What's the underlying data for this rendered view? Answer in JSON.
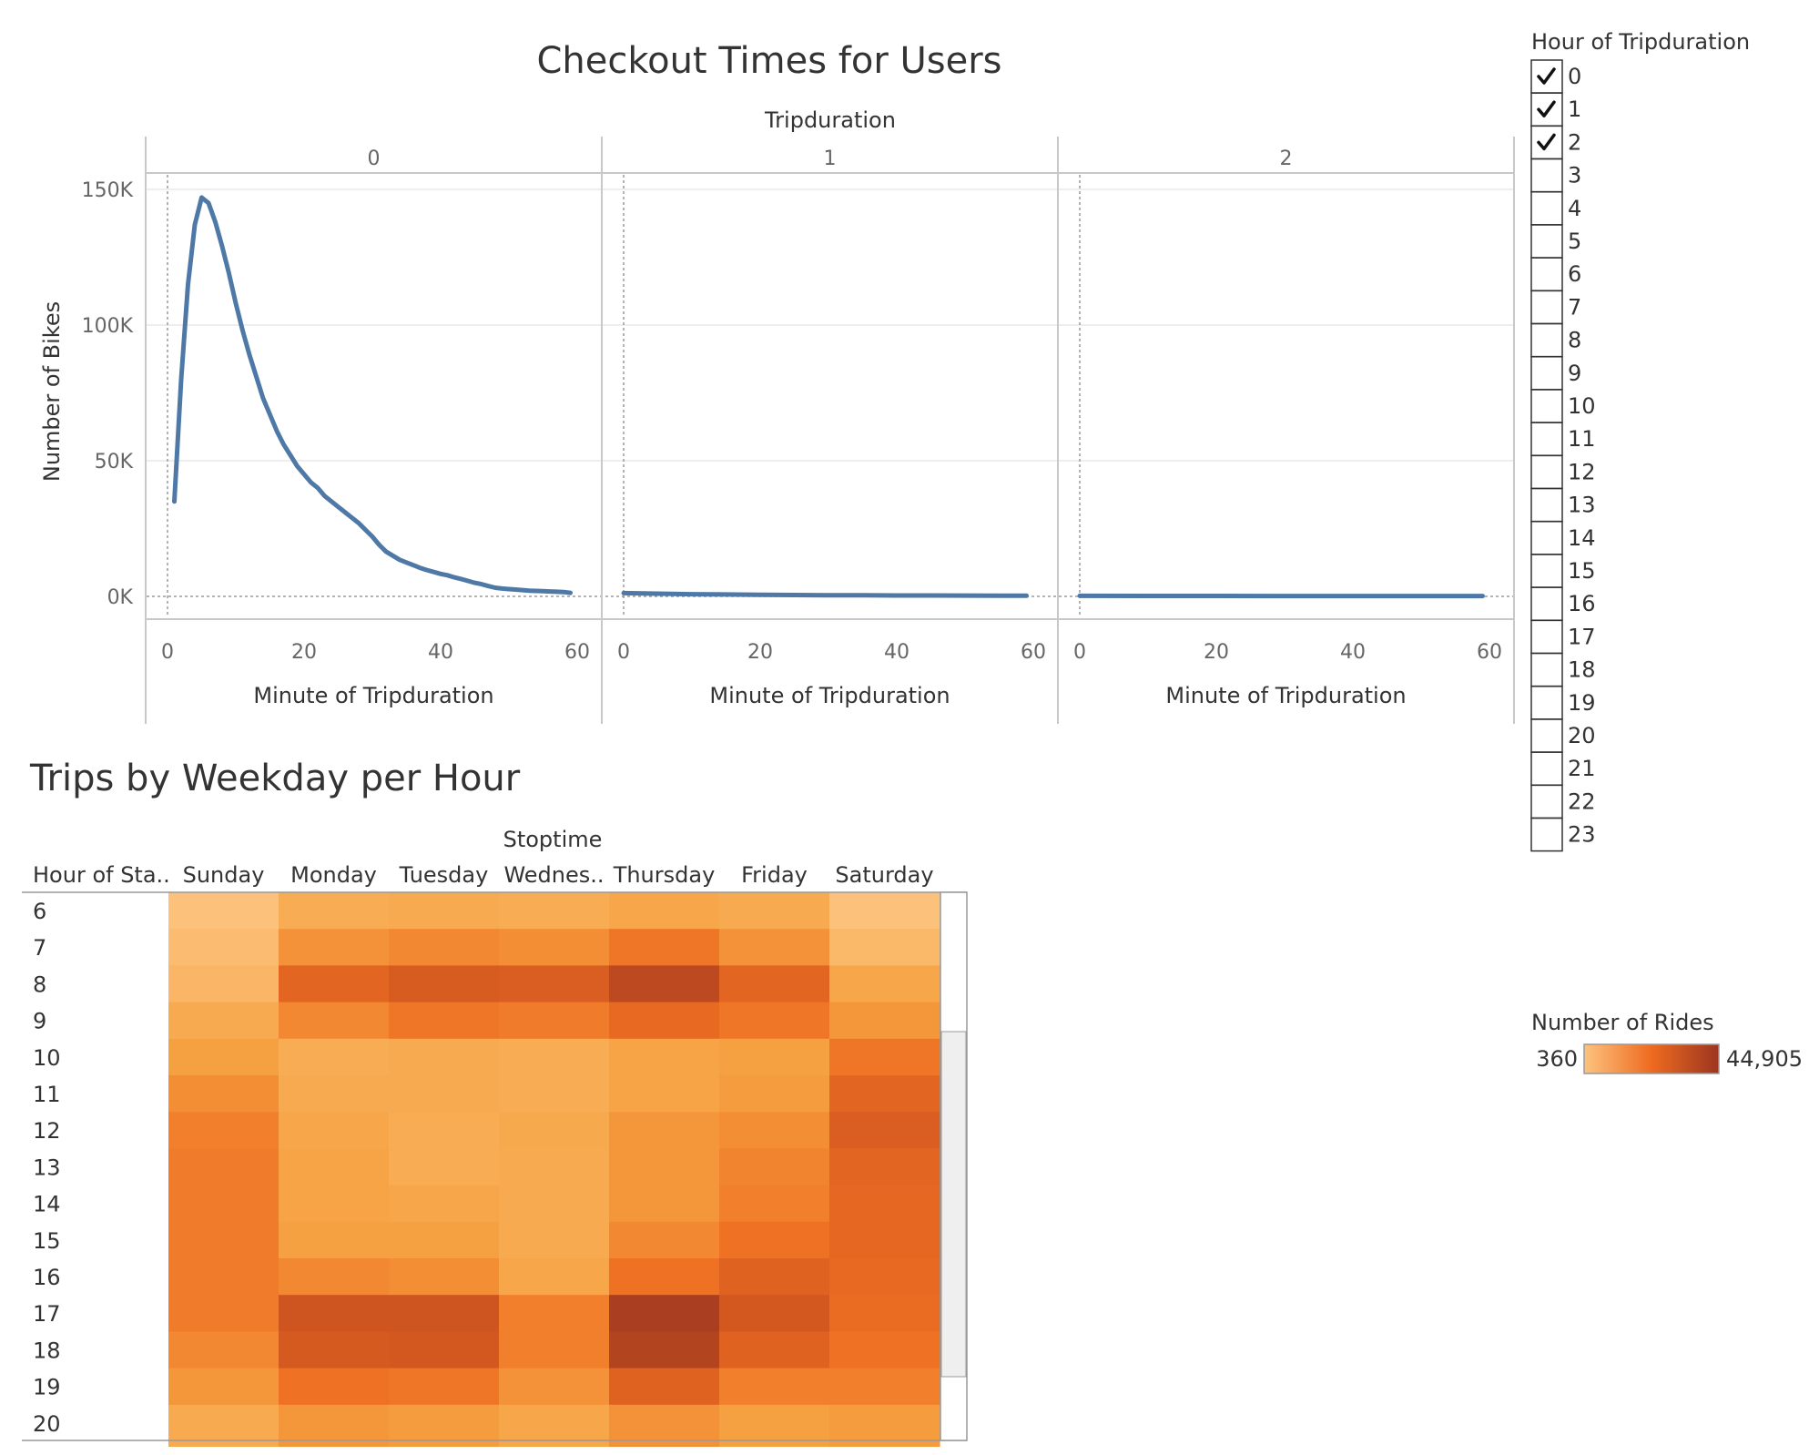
{
  "colors": {
    "line": "#4e79a7",
    "heat_low": "#fdc37f",
    "heat_mid": "#ee6b20",
    "heat_high": "#9c3520"
  },
  "line_chart_panel": {
    "title": "Checkout Times for Users",
    "column_header": "Tripduration",
    "ylabel": "Number of Bikes",
    "xlabel": "Minute of Tripduration"
  },
  "heatmap_panel": {
    "title": "Trips by Weekday per Hour",
    "column_header": "Stoptime",
    "row_header": "Hour of Sta..",
    "column_labels": [
      "Sunday",
      "Monday",
      "Tuesday",
      "Wednes..",
      "Thursday",
      "Friday",
      "Saturday"
    ]
  },
  "filter": {
    "title": "Hour of Tripduration",
    "items": [
      {
        "label": "0",
        "checked": true
      },
      {
        "label": "1",
        "checked": true
      },
      {
        "label": "2",
        "checked": true
      },
      {
        "label": "3",
        "checked": false
      },
      {
        "label": "4",
        "checked": false
      },
      {
        "label": "5",
        "checked": false
      },
      {
        "label": "6",
        "checked": false
      },
      {
        "label": "7",
        "checked": false
      },
      {
        "label": "8",
        "checked": false
      },
      {
        "label": "9",
        "checked": false
      },
      {
        "label": "10",
        "checked": false
      },
      {
        "label": "11",
        "checked": false
      },
      {
        "label": "12",
        "checked": false
      },
      {
        "label": "13",
        "checked": false
      },
      {
        "label": "14",
        "checked": false
      },
      {
        "label": "15",
        "checked": false
      },
      {
        "label": "16",
        "checked": false
      },
      {
        "label": "17",
        "checked": false
      },
      {
        "label": "18",
        "checked": false
      },
      {
        "label": "19",
        "checked": false
      },
      {
        "label": "20",
        "checked": false
      },
      {
        "label": "21",
        "checked": false
      },
      {
        "label": "22",
        "checked": false
      },
      {
        "label": "23",
        "checked": false
      }
    ]
  },
  "color_legend": {
    "title": "Number of Rides",
    "min_label": "360",
    "max_label": "44,905"
  },
  "chart_data": [
    {
      "type": "line",
      "title": "Checkout Times for Users",
      "facet_label": "Tripduration",
      "xlabel": "Minute of Tripduration",
      "ylabel": "Number of Bikes",
      "xlim": [
        0,
        60
      ],
      "ylim": [
        0,
        150000
      ],
      "xticks": [
        0,
        20,
        40,
        60
      ],
      "yticks": [
        0,
        50000,
        100000,
        150000
      ],
      "ytick_labels": [
        "0K",
        "50K",
        "100K",
        "150K"
      ],
      "grid": true,
      "panels": [
        {
          "facet": "0",
          "x": [
            1,
            2,
            3,
            4,
            5,
            6,
            7,
            8,
            9,
            10,
            11,
            12,
            13,
            14,
            15,
            16,
            17,
            18,
            19,
            20,
            21,
            22,
            23,
            24,
            25,
            26,
            27,
            28,
            29,
            30,
            31,
            32,
            33,
            34,
            35,
            36,
            37,
            38,
            39,
            40,
            41,
            42,
            43,
            44,
            45,
            46,
            47,
            48,
            49,
            50,
            51,
            52,
            53,
            54,
            55,
            56,
            57,
            58,
            59
          ],
          "y": [
            35000,
            80000,
            115000,
            137000,
            147000,
            145000,
            138000,
            129000,
            119000,
            108000,
            98000,
            89000,
            81000,
            73000,
            67000,
            61000,
            56000,
            52000,
            48000,
            45000,
            42000,
            40000,
            37000,
            35000,
            33000,
            31000,
            29000,
            27000,
            24500,
            22000,
            19000,
            16500,
            15000,
            13500,
            12500,
            11500,
            10500,
            9700,
            9000,
            8300,
            7800,
            7000,
            6400,
            5700,
            5000,
            4500,
            3800,
            3200,
            2900,
            2700,
            2500,
            2300,
            2100,
            2000,
            1900,
            1800,
            1700,
            1600,
            1300
          ]
        },
        {
          "facet": "1",
          "x": [
            0,
            5,
            10,
            15,
            20,
            25,
            30,
            35,
            40,
            45,
            50,
            55,
            59
          ],
          "y": [
            1200,
            1000,
            800,
            700,
            600,
            500,
            450,
            400,
            350,
            320,
            300,
            270,
            250
          ]
        },
        {
          "facet": "2",
          "x": [
            0,
            10,
            20,
            30,
            40,
            50,
            59
          ],
          "y": [
            200,
            180,
            160,
            150,
            140,
            130,
            120
          ]
        }
      ]
    },
    {
      "type": "heatmap",
      "title": "Trips by Weekday per Hour",
      "column_header": "Stoptime",
      "row_header": "Hour of Sta..",
      "columns": [
        "Sunday",
        "Monday",
        "Tuesday",
        "Wednes..",
        "Thursday",
        "Friday",
        "Saturday"
      ],
      "rows": [
        "6",
        "7",
        "8",
        "9",
        "10",
        "11",
        "12",
        "13",
        "14",
        "15",
        "16",
        "17",
        "18",
        "19",
        "20"
      ],
      "color_range": [
        360,
        44905
      ],
      "values": [
        [
          1500,
          8000,
          9000,
          8500,
          10000,
          9000,
          1500
        ],
        [
          3000,
          15000,
          17000,
          16000,
          21000,
          15000,
          4500
        ],
        [
          5000,
          27000,
          31000,
          30000,
          38000,
          27000,
          10000
        ],
        [
          9000,
          17000,
          21000,
          20000,
          25000,
          21000,
          14000
        ],
        [
          12000,
          8000,
          9000,
          8500,
          11000,
          12000,
          21000
        ],
        [
          16000,
          9000,
          9000,
          8500,
          11000,
          13000,
          27000
        ],
        [
          19000,
          10000,
          8500,
          9500,
          14000,
          16000,
          30000
        ],
        [
          20000,
          11000,
          8500,
          9000,
          14000,
          18000,
          27000
        ],
        [
          20000,
          11000,
          10000,
          9000,
          14000,
          19000,
          26000
        ],
        [
          20000,
          12000,
          12000,
          9000,
          17000,
          22000,
          26000
        ],
        [
          20000,
          17000,
          16000,
          10000,
          22000,
          28000,
          25000
        ],
        [
          20000,
          34000,
          34000,
          19000,
          42000,
          33000,
          24000
        ],
        [
          17000,
          32000,
          33000,
          19000,
          40000,
          28000,
          22000
        ],
        [
          14000,
          22000,
          21000,
          15000,
          28000,
          19000,
          19000
        ],
        [
          9000,
          14000,
          13000,
          10000,
          15000,
          12000,
          13000
        ]
      ]
    }
  ]
}
